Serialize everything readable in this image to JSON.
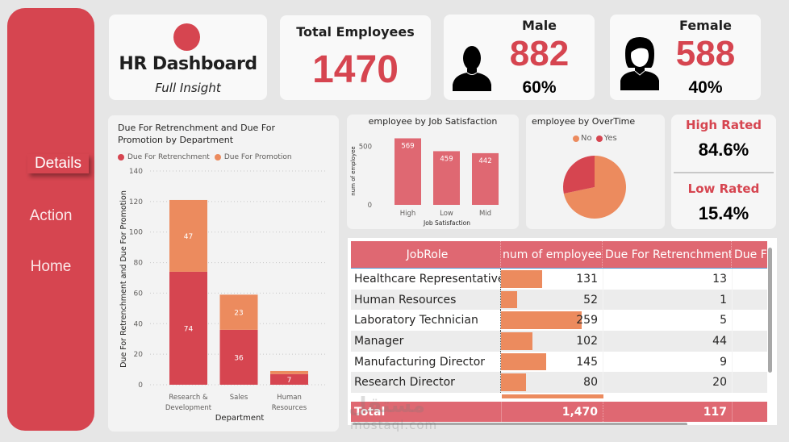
{
  "sidebar": {
    "items": [
      {
        "label": "Details",
        "active": true
      },
      {
        "label": "Action",
        "active": false
      },
      {
        "label": "Home",
        "active": false
      }
    ]
  },
  "header": {
    "title": "HR Dashboard",
    "subtitle": "Full Insight"
  },
  "kpis": {
    "total": {
      "label": "Total Employees",
      "value": "1470"
    },
    "male": {
      "label": "Male",
      "value": "882",
      "percent": "60%",
      "icon": "male-user-icon"
    },
    "female": {
      "label": "Female",
      "value": "588",
      "percent": "40%",
      "icon": "female-user-icon"
    },
    "high_rated": {
      "label": "High Rated",
      "value": "84.6%"
    },
    "low_rated": {
      "label": "Low Rated",
      "value": "15.4%"
    }
  },
  "colors": {
    "primary": "#d64550",
    "secondary": "#ec8b5e",
    "table_header": "#df6872"
  },
  "chart_data": [
    {
      "id": "dept",
      "type": "bar",
      "stacked": true,
      "title": "Due For Retrenchment and Due For Promotion by Department",
      "title_lines": [
        "Due For Retrenchment and Due For",
        "Promotion by Department"
      ],
      "xlabel": "Department",
      "ylabel": "Due For Retrenchment and Due For Promotion",
      "categories": [
        "Research & Development",
        "Sales",
        "Human Resources"
      ],
      "category_lines": [
        [
          "Research &",
          "Development"
        ],
        [
          "Sales"
        ],
        [
          "Human",
          "Resources"
        ]
      ],
      "series": [
        {
          "name": "Due For Retrenchment",
          "color": "#d64550",
          "values": [
            74,
            36,
            7
          ]
        },
        {
          "name": "Due For Promotion",
          "color": "#ec8b5e",
          "values": [
            47,
            23,
            2
          ]
        }
      ],
      "data_labels": [
        [
          "74",
          "36",
          "7"
        ],
        [
          "47",
          "23",
          ""
        ]
      ],
      "ylim": [
        0,
        140
      ],
      "yticks": [
        0,
        20,
        40,
        60,
        80,
        100,
        120,
        140
      ],
      "grid": true,
      "legend": "top-left"
    },
    {
      "id": "jobsat",
      "type": "bar",
      "title": "employee by Job Satisfaction",
      "xlabel": "Job Satisfaction",
      "ylabel": "num of employee",
      "categories": [
        "High",
        "Low",
        "Mid"
      ],
      "values": [
        569,
        459,
        442
      ],
      "color": "#df6872",
      "ylim": [
        0,
        600
      ],
      "yticks": [
        0,
        500
      ],
      "grid": false
    },
    {
      "id": "overtime",
      "type": "pie",
      "title": "employee by OverTime",
      "labels": [
        "No",
        "Yes"
      ],
      "values": [
        1054,
        416
      ],
      "colors": [
        "#ec8b5e",
        "#d64550"
      ],
      "legend": "top-center"
    }
  ],
  "table": {
    "columns": [
      "JobRole",
      "num of employee",
      "Due For Retrenchment",
      "Due F"
    ],
    "rows": [
      {
        "role": "Healthcare Representative",
        "num": "131",
        "num_value": 131,
        "retrench": "13"
      },
      {
        "role": "Human Resources",
        "num": "52",
        "num_value": 52,
        "retrench": "1"
      },
      {
        "role": "Laboratory Technician",
        "num": "259",
        "num_value": 259,
        "retrench": "5"
      },
      {
        "role": "Manager",
        "num": "102",
        "num_value": 102,
        "retrench": "44"
      },
      {
        "role": "Manufacturing Director",
        "num": "145",
        "num_value": 145,
        "retrench": "9"
      },
      {
        "role": "Research Director",
        "num": "80",
        "num_value": 80,
        "retrench": "20"
      }
    ],
    "partial_row_bar_value": 326,
    "bar_max": 326,
    "total": {
      "label": "Total",
      "num": "1,470",
      "retrench": "117"
    }
  },
  "watermark": {
    "arabic": "مستقل",
    "latin": "mostaql.com"
  }
}
